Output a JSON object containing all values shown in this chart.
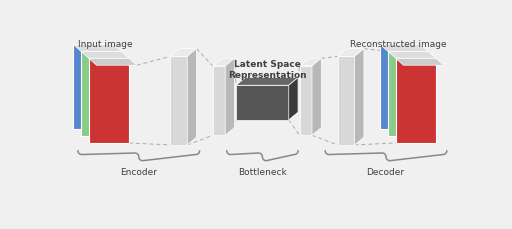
{
  "bg_color": "#f0f0f0",
  "text_color": "#404040",
  "input_label": "Input image",
  "output_label": "Reconstructed image",
  "latent_label": "Latent Space\nRepresentation",
  "encoder_label": "Encoder",
  "bottleneck_label": "Bottleneck",
  "decoder_label": "Decoder",
  "layer_colors": [
    "#cc3333",
    "#88cc88",
    "#5588cc"
  ],
  "gray_face": "#d8d8d8",
  "gray_side": "#b8b8b8",
  "gray_top": "#ebebeb",
  "dark_face": "#555555",
  "dark_side": "#3a3a3a",
  "dark_top": "#666666",
  "dashed_color": "#aaaaaa"
}
